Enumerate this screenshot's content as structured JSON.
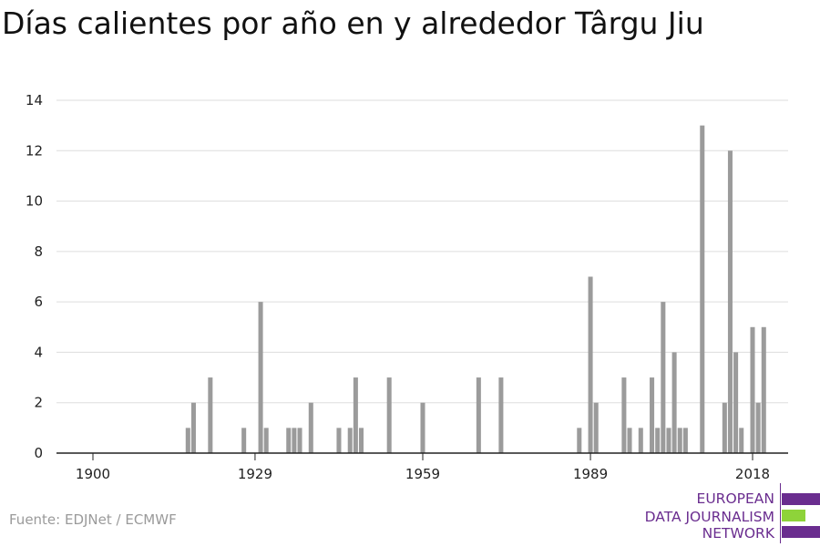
{
  "title": "Días calientes por año en y alrededor Târgu Jiu",
  "source": "Fuente: EDJNet / ECMWF",
  "logo": {
    "lines": [
      "EUROPEAN",
      "DATA JOURNALISM",
      "NETWORK"
    ],
    "colors": {
      "purple": "#6a2d8f",
      "green": "#8ed33a"
    }
  },
  "chart_data": {
    "type": "bar",
    "title": "Días calientes por año en y alrededor Târgu Jiu",
    "xlabel": "",
    "ylabel": "",
    "xlim": [
      1900,
      2018
    ],
    "ylim": [
      0,
      14
    ],
    "x_ticks": [
      1900,
      1929,
      1959,
      1989,
      2018
    ],
    "y_ticks": [
      0,
      2,
      4,
      6,
      8,
      10,
      12,
      14
    ],
    "grid": true,
    "bar_color": "#9b9b9b",
    "years": [
      1917,
      1918,
      1921,
      1927,
      1930,
      1931,
      1935,
      1936,
      1937,
      1939,
      1944,
      1946,
      1947,
      1948,
      1953,
      1959,
      1969,
      1973,
      1987,
      1989,
      1990,
      1995,
      1996,
      1998,
      2000,
      2001,
      2002,
      2003,
      2004,
      2005,
      2006,
      2009,
      2013,
      2014,
      2015,
      2016,
      2018,
      2019,
      2020
    ],
    "values": [
      1,
      2,
      3,
      1,
      6,
      1,
      1,
      1,
      1,
      2,
      1,
      1,
      3,
      1,
      3,
      2,
      3,
      3,
      1,
      7,
      2,
      3,
      1,
      1,
      3,
      1,
      6,
      1,
      4,
      1,
      1,
      13,
      2,
      12,
      4,
      1,
      5,
      2,
      5
    ]
  }
}
